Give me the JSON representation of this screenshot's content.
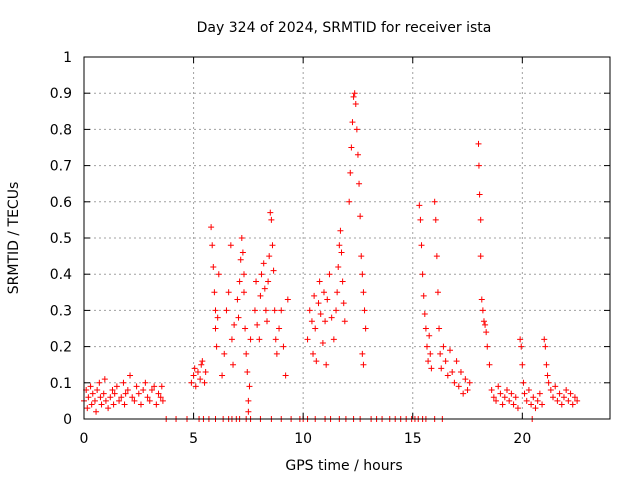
{
  "chart_data": {
    "type": "scatter",
    "title": "Day 324 of 2024, SRMTID for receiver ista",
    "xlabel": "GPS time / hours",
    "ylabel": "SRMTID / TECUs",
    "xlim": [
      0,
      24
    ],
    "ylim": [
      0,
      1
    ],
    "x_ticks": [
      0,
      5,
      10,
      15,
      20
    ],
    "x_tick_labels": [
      "0",
      "5",
      "10",
      "15",
      "20"
    ],
    "y_ticks": [
      0,
      0.1,
      0.2,
      0.3,
      0.4,
      0.5,
      0.6,
      0.7,
      0.8,
      0.9,
      1
    ],
    "y_tick_labels": [
      "0",
      "0.1",
      "0.2",
      "0.3",
      "0.4",
      "0.5",
      "0.6",
      "0.7",
      "0.8",
      "0.9",
      "1"
    ],
    "grid": true,
    "marker": "+",
    "color": "#ff0000",
    "series": [
      {
        "name": "SRMTID",
        "points": [
          [
            0.0,
            0.05
          ],
          [
            0.1,
            0.08
          ],
          [
            0.15,
            0.03
          ],
          [
            0.2,
            0.06
          ],
          [
            0.3,
            0.09
          ],
          [
            0.35,
            0.04
          ],
          [
            0.4,
            0.07
          ],
          [
            0.5,
            0.05
          ],
          [
            0.55,
            0.02
          ],
          [
            0.6,
            0.08
          ],
          [
            0.7,
            0.1
          ],
          [
            0.75,
            0.06
          ],
          [
            0.8,
            0.04
          ],
          [
            0.9,
            0.07
          ],
          [
            0.95,
            0.11
          ],
          [
            1.0,
            0.05
          ],
          [
            1.1,
            0.03
          ],
          [
            1.2,
            0.06
          ],
          [
            1.3,
            0.08
          ],
          [
            1.35,
            0.04
          ],
          [
            1.4,
            0.07
          ],
          [
            1.5,
            0.09
          ],
          [
            1.6,
            0.05
          ],
          [
            1.7,
            0.06
          ],
          [
            1.8,
            0.1
          ],
          [
            1.85,
            0.04
          ],
          [
            1.9,
            0.07
          ],
          [
            2.0,
            0.08
          ],
          [
            2.1,
            0.12
          ],
          [
            2.2,
            0.06
          ],
          [
            2.3,
            0.05
          ],
          [
            2.4,
            0.09
          ],
          [
            2.5,
            0.07
          ],
          [
            2.6,
            0.04
          ],
          [
            2.7,
            0.08
          ],
          [
            2.8,
            0.1
          ],
          [
            2.9,
            0.06
          ],
          [
            3.0,
            0.05
          ],
          [
            3.1,
            0.08
          ],
          [
            3.2,
            0.09
          ],
          [
            3.3,
            0.04
          ],
          [
            3.4,
            0.07
          ],
          [
            3.5,
            0.06
          ],
          [
            3.55,
            0.09
          ],
          [
            3.6,
            0.05
          ],
          [
            4.9,
            0.1
          ],
          [
            5.0,
            0.12
          ],
          [
            5.05,
            0.14
          ],
          [
            5.1,
            0.09
          ],
          [
            5.2,
            0.13
          ],
          [
            5.3,
            0.11
          ],
          [
            5.35,
            0.15
          ],
          [
            5.4,
            0.16
          ],
          [
            5.5,
            0.1
          ],
          [
            5.55,
            0.13
          ],
          [
            5.8,
            0.53
          ],
          [
            5.85,
            0.48
          ],
          [
            5.9,
            0.42
          ],
          [
            5.95,
            0.35
          ],
          [
            6.0,
            0.3
          ],
          [
            6.0,
            0.25
          ],
          [
            6.05,
            0.2
          ],
          [
            6.1,
            0.28
          ],
          [
            6.15,
            0.4
          ],
          [
            6.3,
            0.12
          ],
          [
            6.4,
            0.18
          ],
          [
            6.5,
            0.3
          ],
          [
            6.6,
            0.35
          ],
          [
            6.7,
            0.48
          ],
          [
            6.75,
            0.22
          ],
          [
            6.8,
            0.15
          ],
          [
            6.85,
            0.26
          ],
          [
            7.0,
            0.33
          ],
          [
            7.05,
            0.28
          ],
          [
            7.1,
            0.38
          ],
          [
            7.15,
            0.44
          ],
          [
            7.2,
            0.5
          ],
          [
            7.25,
            0.46
          ],
          [
            7.3,
            0.4
          ],
          [
            7.3,
            0.35
          ],
          [
            7.35,
            0.25
          ],
          [
            7.4,
            0.18
          ],
          [
            7.45,
            0.13
          ],
          [
            7.5,
            0.05
          ],
          [
            7.5,
            0.02
          ],
          [
            7.55,
            0.09
          ],
          [
            7.6,
            0.22
          ],
          [
            7.8,
            0.3
          ],
          [
            7.85,
            0.38
          ],
          [
            7.9,
            0.26
          ],
          [
            8.0,
            0.22
          ],
          [
            8.05,
            0.34
          ],
          [
            8.1,
            0.4
          ],
          [
            8.2,
            0.43
          ],
          [
            8.25,
            0.36
          ],
          [
            8.3,
            0.3
          ],
          [
            8.35,
            0.27
          ],
          [
            8.4,
            0.38
          ],
          [
            8.45,
            0.45
          ],
          [
            8.5,
            0.57
          ],
          [
            8.55,
            0.55
          ],
          [
            8.6,
            0.48
          ],
          [
            8.65,
            0.41
          ],
          [
            8.7,
            0.3
          ],
          [
            8.75,
            0.22
          ],
          [
            8.8,
            0.18
          ],
          [
            8.9,
            0.25
          ],
          [
            9.0,
            0.3
          ],
          [
            9.1,
            0.2
          ],
          [
            9.2,
            0.12
          ],
          [
            9.3,
            0.33
          ],
          [
            10.2,
            0.22
          ],
          [
            10.3,
            0.3
          ],
          [
            10.4,
            0.27
          ],
          [
            10.45,
            0.18
          ],
          [
            10.5,
            0.34
          ],
          [
            10.55,
            0.25
          ],
          [
            10.6,
            0.16
          ],
          [
            10.7,
            0.32
          ],
          [
            10.75,
            0.38
          ],
          [
            10.8,
            0.29
          ],
          [
            10.9,
            0.21
          ],
          [
            10.95,
            0.35
          ],
          [
            11.0,
            0.27
          ],
          [
            11.05,
            0.15
          ],
          [
            11.1,
            0.33
          ],
          [
            11.2,
            0.4
          ],
          [
            11.3,
            0.28
          ],
          [
            11.4,
            0.22
          ],
          [
            11.5,
            0.3
          ],
          [
            11.55,
            0.35
          ],
          [
            11.6,
            0.42
          ],
          [
            11.65,
            0.48
          ],
          [
            11.7,
            0.52
          ],
          [
            11.75,
            0.46
          ],
          [
            11.8,
            0.38
          ],
          [
            11.85,
            0.32
          ],
          [
            11.9,
            0.27
          ],
          [
            12.1,
            0.6
          ],
          [
            12.15,
            0.68
          ],
          [
            12.2,
            0.75
          ],
          [
            12.25,
            0.82
          ],
          [
            12.3,
            0.89
          ],
          [
            12.35,
            0.9
          ],
          [
            12.4,
            0.87
          ],
          [
            12.45,
            0.8
          ],
          [
            12.5,
            0.73
          ],
          [
            12.55,
            0.65
          ],
          [
            12.6,
            0.56
          ],
          [
            12.65,
            0.45
          ],
          [
            12.7,
            0.4
          ],
          [
            12.75,
            0.35
          ],
          [
            12.8,
            0.3
          ],
          [
            12.85,
            0.25
          ],
          [
            12.7,
            0.18
          ],
          [
            12.75,
            0.15
          ],
          [
            15.3,
            0.59
          ],
          [
            15.35,
            0.55
          ],
          [
            15.4,
            0.48
          ],
          [
            15.45,
            0.4
          ],
          [
            15.5,
            0.34
          ],
          [
            15.55,
            0.29
          ],
          [
            15.6,
            0.25
          ],
          [
            15.65,
            0.2
          ],
          [
            15.7,
            0.16
          ],
          [
            15.75,
            0.23
          ],
          [
            15.8,
            0.18
          ],
          [
            15.85,
            0.14
          ],
          [
            16.0,
            0.6
          ],
          [
            16.05,
            0.55
          ],
          [
            16.1,
            0.45
          ],
          [
            16.15,
            0.35
          ],
          [
            16.2,
            0.25
          ],
          [
            16.25,
            0.18
          ],
          [
            16.3,
            0.14
          ],
          [
            16.4,
            0.2
          ],
          [
            16.5,
            0.16
          ],
          [
            16.6,
            0.12
          ],
          [
            16.7,
            0.19
          ],
          [
            16.8,
            0.13
          ],
          [
            16.9,
            0.1
          ],
          [
            17.0,
            0.16
          ],
          [
            17.1,
            0.09
          ],
          [
            17.2,
            0.13
          ],
          [
            17.3,
            0.07
          ],
          [
            17.4,
            0.11
          ],
          [
            17.5,
            0.08
          ],
          [
            17.6,
            0.1
          ],
          [
            18.0,
            0.76
          ],
          [
            18.02,
            0.7
          ],
          [
            18.05,
            0.62
          ],
          [
            18.1,
            0.55
          ],
          [
            18.1,
            0.45
          ],
          [
            18.15,
            0.33
          ],
          [
            18.2,
            0.3
          ],
          [
            18.25,
            0.27
          ],
          [
            18.3,
            0.26
          ],
          [
            18.35,
            0.24
          ],
          [
            18.4,
            0.2
          ],
          [
            18.5,
            0.15
          ],
          [
            18.6,
            0.08
          ],
          [
            18.7,
            0.06
          ],
          [
            18.8,
            0.05
          ],
          [
            18.9,
            0.09
          ],
          [
            19.0,
            0.07
          ],
          [
            19.1,
            0.04
          ],
          [
            19.2,
            0.06
          ],
          [
            19.3,
            0.08
          ],
          [
            19.4,
            0.05
          ],
          [
            19.5,
            0.07
          ],
          [
            19.6,
            0.04
          ],
          [
            19.7,
            0.06
          ],
          [
            19.8,
            0.03
          ],
          [
            19.9,
            0.22
          ],
          [
            19.95,
            0.2
          ],
          [
            20.0,
            0.15
          ],
          [
            20.05,
            0.1
          ],
          [
            20.1,
            0.07
          ],
          [
            20.2,
            0.05
          ],
          [
            20.3,
            0.08
          ],
          [
            20.4,
            0.04
          ],
          [
            20.5,
            0.06
          ],
          [
            20.6,
            0.03
          ],
          [
            20.7,
            0.05
          ],
          [
            20.8,
            0.07
          ],
          [
            20.9,
            0.04
          ],
          [
            21.0,
            0.22
          ],
          [
            21.05,
            0.2
          ],
          [
            21.1,
            0.15
          ],
          [
            21.15,
            0.12
          ],
          [
            21.2,
            0.1
          ],
          [
            21.3,
            0.08
          ],
          [
            21.4,
            0.06
          ],
          [
            21.5,
            0.09
          ],
          [
            21.6,
            0.05
          ],
          [
            21.7,
            0.07
          ],
          [
            21.8,
            0.04
          ],
          [
            21.9,
            0.06
          ],
          [
            22.0,
            0.08
          ],
          [
            22.1,
            0.05
          ],
          [
            22.2,
            0.07
          ],
          [
            22.3,
            0.04
          ],
          [
            22.4,
            0.06
          ],
          [
            22.5,
            0.05
          ]
        ]
      },
      {
        "name": "zero-level markers",
        "points": [
          [
            3.75,
            0
          ],
          [
            4.2,
            0
          ],
          [
            4.7,
            0
          ],
          [
            5.25,
            0
          ],
          [
            5.45,
            0
          ],
          [
            5.7,
            0
          ],
          [
            6.0,
            0
          ],
          [
            6.35,
            0
          ],
          [
            6.6,
            0
          ],
          [
            6.75,
            0
          ],
          [
            6.95,
            0
          ],
          [
            7.1,
            0
          ],
          [
            7.4,
            0
          ],
          [
            7.6,
            0
          ],
          [
            8.05,
            0
          ],
          [
            8.55,
            0
          ],
          [
            9.0,
            0
          ],
          [
            9.45,
            0
          ],
          [
            9.85,
            0
          ],
          [
            10.0,
            0
          ],
          [
            10.2,
            0
          ],
          [
            10.55,
            0
          ],
          [
            11.0,
            0
          ],
          [
            11.25,
            0
          ],
          [
            11.65,
            0
          ],
          [
            11.95,
            0
          ],
          [
            12.3,
            0
          ],
          [
            12.6,
            0
          ],
          [
            13.1,
            0
          ],
          [
            13.35,
            0
          ],
          [
            13.6,
            0
          ],
          [
            13.95,
            0
          ],
          [
            14.2,
            0
          ],
          [
            14.45,
            0
          ],
          [
            14.7,
            0
          ],
          [
            14.95,
            0
          ],
          [
            15.1,
            0
          ],
          [
            15.25,
            0
          ],
          [
            15.45,
            0
          ],
          [
            15.6,
            0
          ],
          [
            16.0,
            0
          ],
          [
            16.35,
            0
          ],
          [
            20.45,
            0
          ]
        ]
      }
    ]
  }
}
